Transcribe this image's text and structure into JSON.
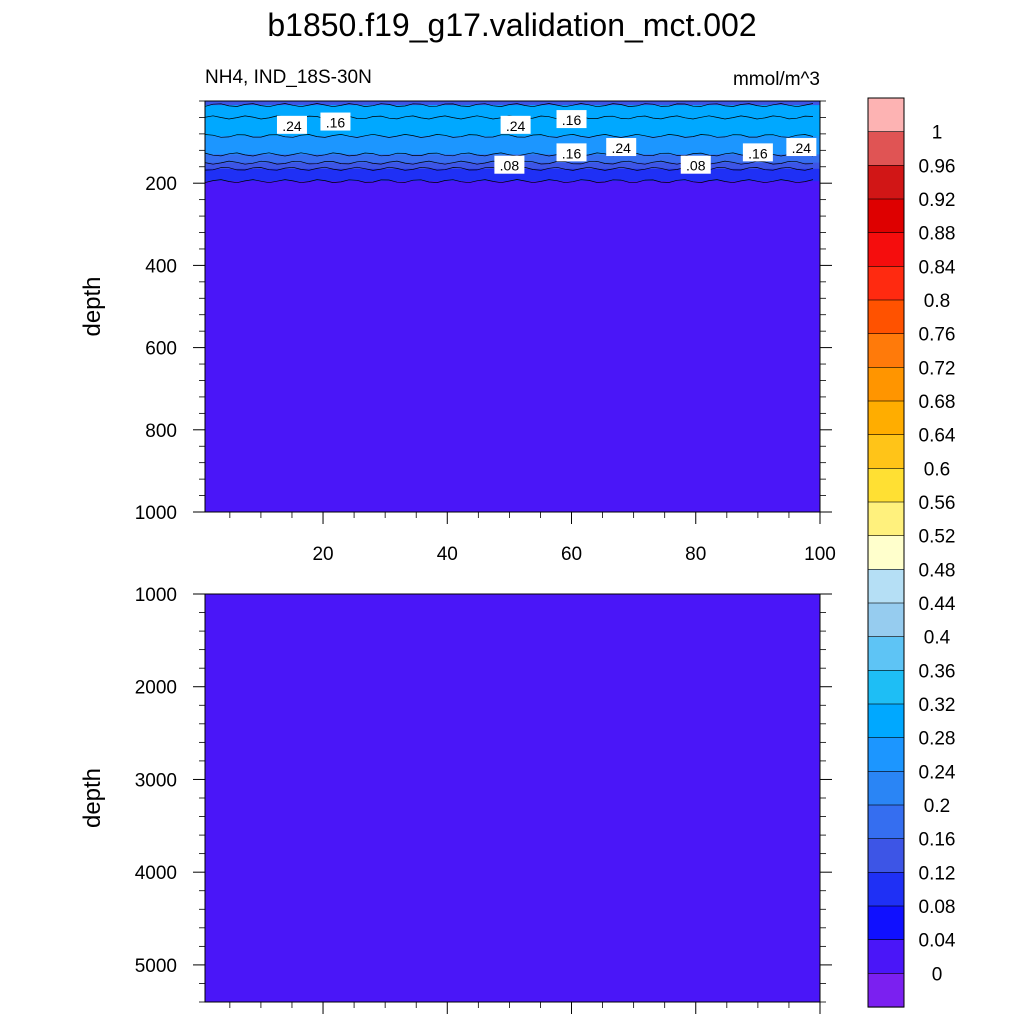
{
  "title": "b1850.f19_g17.validation_mct.002",
  "subtitle_left": "NH4, IND_18S-30N",
  "subtitle_right": "mmol/m^3",
  "chart_data": [
    {
      "type": "heatmap",
      "panel": "upper",
      "ylabel": "depth",
      "ylim": [
        1000,
        0
      ],
      "y_reversed": true,
      "xlim": [
        1,
        100
      ],
      "x_ticks": [
        20,
        40,
        60,
        80,
        100
      ],
      "y_ticks": [
        200,
        400,
        600,
        800,
        1000
      ],
      "description_levels": [
        {
          "depth_range": [
            0,
            10
          ],
          "value": 0.12
        },
        {
          "depth_range": [
            10,
            40
          ],
          "value": 0.28
        },
        {
          "depth_range": [
            40,
            85
          ],
          "value": 0.3
        },
        {
          "depth_range": [
            85,
            130
          ],
          "value": 0.24
        },
        {
          "depth_range": [
            130,
            150
          ],
          "value": 0.16
        },
        {
          "depth_range": [
            150,
            165
          ],
          "value": 0.12
        },
        {
          "depth_range": [
            165,
            195
          ],
          "value": 0.08
        },
        {
          "depth_range": [
            195,
            1000
          ],
          "value": 0.02
        }
      ],
      "contour_labels": [
        {
          "text": ".24",
          "x": 15,
          "depth": 58
        },
        {
          "text": ".16",
          "x": 22,
          "depth": 50
        },
        {
          "text": ".24",
          "x": 51,
          "depth": 58
        },
        {
          "text": ".16",
          "x": 60,
          "depth": 44
        },
        {
          "text": ".16",
          "x": 60,
          "depth": 125
        },
        {
          "text": ".24",
          "x": 68,
          "depth": 112
        },
        {
          "text": ".08",
          "x": 50,
          "depth": 155
        },
        {
          "text": ".08",
          "x": 80,
          "depth": 155
        },
        {
          "text": ".16",
          "x": 90,
          "depth": 125
        },
        {
          "text": ".24",
          "x": 97,
          "depth": 112
        }
      ]
    },
    {
      "type": "heatmap",
      "panel": "lower",
      "ylabel": "depth",
      "ylim": [
        5400,
        1000
      ],
      "y_reversed": true,
      "xlim": [
        1,
        100
      ],
      "x_ticks": [
        20,
        40,
        60,
        80,
        100
      ],
      "y_ticks": [
        1000,
        2000,
        3000,
        4000,
        5000
      ],
      "uniform_value": 0.02
    }
  ],
  "colorbar": {
    "labels": [
      "1",
      "0.96",
      "0.92",
      "0.88",
      "0.84",
      "0.8",
      "0.76",
      "0.72",
      "0.68",
      "0.64",
      "0.6",
      "0.56",
      "0.52",
      "0.48",
      "0.44",
      "0.4",
      "0.36",
      "0.32",
      "0.28",
      "0.24",
      "0.2",
      "0.16",
      "0.12",
      "0.08",
      "0.04",
      "0"
    ],
    "colors_top_to_bottom": [
      "#fdb3b3",
      "#e05454",
      "#d11616",
      "#de0000",
      "#f50d0d",
      "#ff2a10",
      "#ff5200",
      "#ff7a0a",
      "#ff9500",
      "#ffad00",
      "#ffc418",
      "#ffe033",
      "#fff17d",
      "#ffffcc",
      "#b5dff5",
      "#96ccef",
      "#5ec4f5",
      "#1ebef5",
      "#00a8ff",
      "#1c96ff",
      "#2a85f5",
      "#356ef0",
      "#3d55e6",
      "#1f30f5",
      "#1010ff",
      "#4a16f8",
      "#7b20f0"
    ]
  },
  "colors": {
    "deep_fill": "#4a16f8"
  }
}
